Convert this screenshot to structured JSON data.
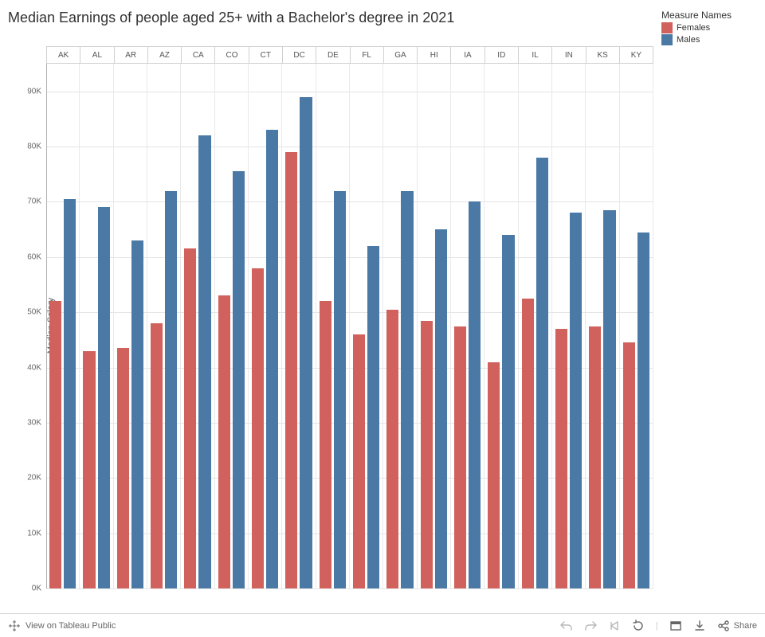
{
  "chart": {
    "type": "bar",
    "title": "Median Earnings of people aged 25+ with a Bachelor's degree in 2021",
    "title_fontsize": 18,
    "ylabel": "Median Salary",
    "label_fontsize": 11,
    "ylim": [
      0,
      95000
    ],
    "ytick_step": 10000,
    "yticks": [
      "0K",
      "10K",
      "20K",
      "30K",
      "40K",
      "50K",
      "60K",
      "70K",
      "80K",
      "90K"
    ],
    "background_color": "#ffffff",
    "grid_color": "#e5e5e5",
    "axis_color": "#b0b0b0",
    "panel_border_color": "#e9e9e9",
    "series": [
      {
        "name": "Females",
        "color": "#d1615d"
      },
      {
        "name": "Males",
        "color": "#4a79a6"
      }
    ],
    "categories": [
      "AK",
      "AL",
      "AR",
      "AZ",
      "CA",
      "CO",
      "CT",
      "DC",
      "DE",
      "FL",
      "GA",
      "HI",
      "IA",
      "ID",
      "IL",
      "IN",
      "KS",
      "KY"
    ],
    "values": {
      "Females": [
        52000,
        43000,
        43500,
        48000,
        61500,
        53000,
        58000,
        79000,
        52000,
        46000,
        50500,
        48500,
        47500,
        41000,
        52500,
        47000,
        47500,
        44500
      ],
      "Males": [
        70500,
        69000,
        63000,
        72000,
        82000,
        75500,
        83000,
        89000,
        72000,
        62000,
        72000,
        65000,
        70000,
        64000,
        78000,
        68000,
        68500,
        64500
      ]
    },
    "bar_width": 0.7,
    "text_color": "#333333",
    "tick_font_size": 10
  },
  "legend": {
    "title": "Measure Names",
    "items": [
      {
        "label": "Females",
        "color": "#d1615d"
      },
      {
        "label": "Males",
        "color": "#4a79a6"
      }
    ]
  },
  "toolbar": {
    "view_label": "View on Tableau Public",
    "undo_label": "Undo",
    "redo_label": "Redo",
    "replay_label": "Replay",
    "reset_label": "Reset",
    "fullscreen_label": "Full Screen",
    "download_label": "Download",
    "share_label": "Share",
    "icon_color": "#666666"
  }
}
